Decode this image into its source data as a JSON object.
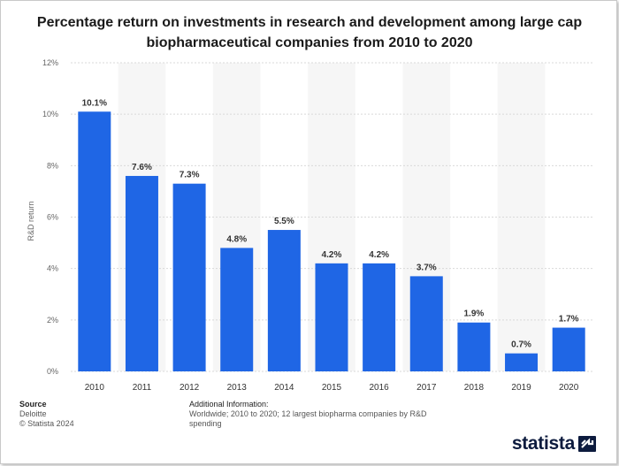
{
  "title": "Percentage return on investments in research and development among large cap biopharmaceutical companies from 2010 to 2020",
  "chart_data": {
    "type": "bar",
    "title": "Percentage return on investments in research and development among large cap biopharmaceutical companies from 2010 to 2020",
    "xlabel": "",
    "ylabel": "R&D return",
    "categories": [
      "2010",
      "2011",
      "2012",
      "2013",
      "2014",
      "2015",
      "2016",
      "2017",
      "2018",
      "2019",
      "2020"
    ],
    "values": [
      10.1,
      7.6,
      7.3,
      4.8,
      5.5,
      4.2,
      4.2,
      3.7,
      1.9,
      0.7,
      1.7
    ],
    "data_labels": [
      "10.1%",
      "7.6%",
      "7.3%",
      "4.8%",
      "5.5%",
      "4.2%",
      "4.2%",
      "3.7%",
      "1.9%",
      "0.7%",
      "1.7%"
    ],
    "ylim": [
      0,
      12
    ],
    "yticks": [
      0,
      2,
      4,
      6,
      8,
      10,
      12
    ],
    "ytick_labels": [
      "0%",
      "2%",
      "4%",
      "6%",
      "8%",
      "10%",
      "12%"
    ],
    "bar_color": "#1f66e5",
    "grid": true
  },
  "footer": {
    "source_heading": "Source",
    "source_name": "Deloitte",
    "copyright": "© Statista 2024",
    "info_heading": "Additional Information:",
    "info_text": "Worldwide; 2010 to 2020; 12 largest biopharma companies by R&D spending"
  },
  "brand": {
    "name": "statista",
    "color": "#0d1b3e"
  }
}
